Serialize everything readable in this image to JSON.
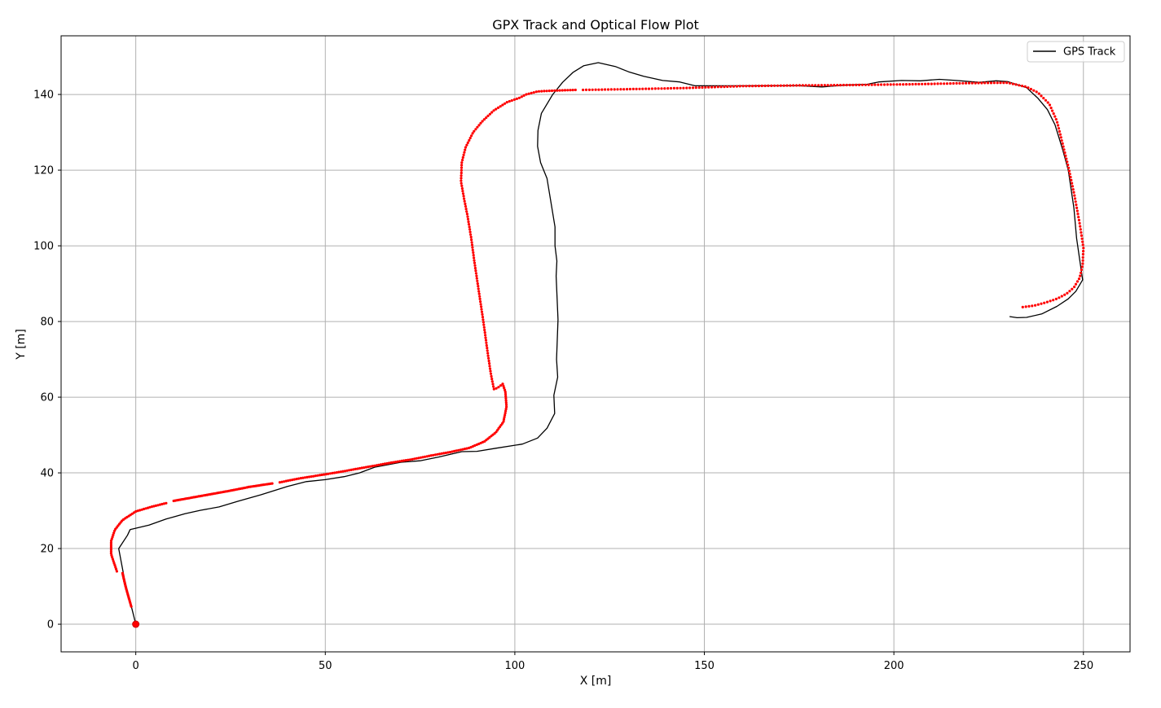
{
  "chart_data": {
    "type": "line",
    "title": "GPX Track and Optical Flow Plot",
    "xlabel": "X [m]",
    "ylabel": "Y [m]",
    "xlim": [
      -19.7,
      262.3
    ],
    "ylim": [
      -7.3,
      155.5
    ],
    "xticks": [
      0,
      50,
      100,
      150,
      200,
      250
    ],
    "yticks": [
      0,
      20,
      40,
      60,
      80,
      100,
      120,
      140
    ],
    "grid": true,
    "legend": {
      "position": "top-right",
      "entries": [
        "GPS Track"
      ]
    },
    "series": [
      {
        "name": "GPS Track",
        "kind": "line",
        "color": "#000000",
        "points": [
          [
            0,
            0
          ],
          [
            -3,
            12
          ],
          [
            -4.5,
            20
          ],
          [
            -2.2,
            23.5
          ],
          [
            -1.5,
            25
          ],
          [
            3.5,
            26.2
          ],
          [
            8,
            27.8
          ],
          [
            13,
            29.2
          ],
          [
            17,
            30.1
          ],
          [
            22,
            31
          ],
          [
            27,
            32.5
          ],
          [
            33,
            34.2
          ],
          [
            40,
            36.4
          ],
          [
            45,
            37.7
          ],
          [
            50,
            38.2
          ],
          [
            55,
            39
          ],
          [
            59,
            40
          ],
          [
            63,
            41.5
          ],
          [
            70,
            42.8
          ],
          [
            75,
            43.2
          ],
          [
            80,
            44.2
          ],
          [
            86,
            45.6
          ],
          [
            90,
            45.7
          ],
          [
            95,
            46.5
          ],
          [
            102,
            47.6
          ],
          [
            106,
            49.2
          ],
          [
            108.5,
            51.8
          ],
          [
            110.5,
            55.7
          ],
          [
            110.3,
            60.5
          ],
          [
            111.3,
            65.3
          ],
          [
            111,
            70
          ],
          [
            111.4,
            80.5
          ],
          [
            110.9,
            92
          ],
          [
            111.1,
            96
          ],
          [
            110.6,
            100
          ],
          [
            110.6,
            105
          ],
          [
            109.2,
            113.5
          ],
          [
            108.5,
            117.8
          ],
          [
            106.8,
            122
          ],
          [
            106,
            126.3
          ],
          [
            106.1,
            130.5
          ],
          [
            107,
            135
          ],
          [
            110,
            140
          ],
          [
            112.6,
            143.2
          ],
          [
            115.3,
            145.8
          ],
          [
            118.2,
            147.6
          ],
          [
            122,
            148.4
          ],
          [
            126.5,
            147.4
          ],
          [
            130,
            146
          ],
          [
            134,
            144.8
          ],
          [
            139,
            143.7
          ],
          [
            143.5,
            143.3
          ],
          [
            147.5,
            142.3
          ],
          [
            160,
            142.3
          ],
          [
            175,
            142.3
          ],
          [
            181,
            142
          ],
          [
            188,
            142.5
          ],
          [
            193,
            142.7
          ],
          [
            196,
            143.3
          ],
          [
            202,
            143.7
          ],
          [
            207,
            143.6
          ],
          [
            212,
            144
          ],
          [
            216.5,
            143.7
          ],
          [
            222.5,
            143.2
          ],
          [
            227,
            143.6
          ],
          [
            230,
            143.4
          ],
          [
            235,
            141.8
          ],
          [
            238,
            139
          ],
          [
            240.5,
            136
          ],
          [
            242.5,
            132
          ],
          [
            244.5,
            125.5
          ],
          [
            246,
            120
          ],
          [
            247.5,
            110
          ],
          [
            248.2,
            102
          ],
          [
            249.8,
            91
          ],
          [
            248,
            88
          ],
          [
            246,
            86
          ],
          [
            243,
            84
          ],
          [
            239,
            82
          ],
          [
            235,
            81.1
          ],
          [
            232.5,
            81
          ],
          [
            230.5,
            81.3
          ]
        ]
      },
      {
        "name": "",
        "kind": "scatter",
        "color": "#ff0000",
        "segments": [
          {
            "points": [
              [
                -1.2,
                4.7
              ],
              [
                -2.7,
                10
              ],
              [
                -3.5,
                13.5
              ]
            ],
            "n": 22
          },
          {
            "points": [
              [
                -5,
                14
              ],
              [
                -6.5,
                18.5
              ],
              [
                -6.5,
                22
              ],
              [
                -5.5,
                25
              ],
              [
                -3.5,
                27.5
              ],
              [
                0,
                29.8
              ],
              [
                4,
                31
              ],
              [
                8,
                32
              ]
            ],
            "n": 50
          },
          {
            "points": [
              [
                10,
                32.6
              ],
              [
                15,
                33.5
              ],
              [
                20,
                34.4
              ],
              [
                25,
                35.3
              ],
              [
                30,
                36.3
              ],
              [
                36,
                37.2
              ]
            ],
            "n": 60
          },
          {
            "points": [
              [
                38,
                37.5
              ],
              [
                43,
                38.5
              ],
              [
                48,
                39.3
              ],
              [
                53,
                40.1
              ],
              [
                58,
                41
              ],
              [
                63,
                41.9
              ],
              [
                68,
                42.8
              ],
              [
                73,
                43.6
              ],
              [
                78,
                44.6
              ],
              [
                83,
                45.5
              ],
              [
                88,
                46.6
              ],
              [
                92,
                48.3
              ],
              [
                95,
                50.7
              ],
              [
                97,
                53.5
              ],
              [
                97.8,
                57.5
              ],
              [
                97.5,
                61.5
              ],
              [
                96.8,
                63.5
              ]
            ],
            "n": 130
          },
          {
            "points": [
              [
                96.8,
                63.5
              ],
              [
                95.5,
                62.5
              ],
              [
                94.5,
                62.1
              ],
              [
                93.7,
                66
              ],
              [
                92.8,
                72
              ],
              [
                91.7,
                80
              ],
              [
                90.5,
                88
              ],
              [
                89.3,
                96
              ],
              [
                88.5,
                102
              ],
              [
                87.5,
                108
              ],
              [
                86.7,
                112
              ],
              [
                85.8,
                117
              ],
              [
                86,
                122
              ],
              [
                87,
                126
              ],
              [
                89,
                130
              ],
              [
                91.5,
                133
              ],
              [
                94.5,
                135.8
              ],
              [
                98,
                138
              ],
              [
                101,
                139
              ],
              [
                103,
                140
              ],
              [
                106,
                140.8
              ],
              [
                110,
                141
              ],
              [
                116,
                141.2
              ]
            ],
            "n": 150
          },
          {
            "points": [
              [
                118,
                141.2
              ],
              [
                130,
                141.4
              ],
              [
                145,
                141.7
              ],
              [
                160,
                142.2
              ],
              [
                175,
                142.4
              ],
              [
                190,
                142.5
              ],
              [
                205,
                142.7
              ],
              [
                220,
                143
              ],
              [
                230,
                143.1
              ],
              [
                235,
                142
              ],
              [
                238,
                140.5
              ],
              [
                241,
                137.5
              ],
              [
                243,
                133
              ],
              [
                244.5,
                127
              ],
              [
                246,
                121
              ],
              [
                247.5,
                114
              ],
              [
                249,
                106
              ],
              [
                250,
                99.5
              ],
              [
                249.8,
                95
              ],
              [
                249,
                91.5
              ],
              [
                247.5,
                89
              ],
              [
                245.5,
                87.3
              ],
              [
                243,
                86
              ],
              [
                240,
                85
              ],
              [
                237,
                84.2
              ],
              [
                234,
                83.8
              ]
            ],
            "n": 230
          }
        ]
      },
      {
        "name": "",
        "kind": "marker",
        "color": "#ff0000",
        "points": [
          [
            0,
            0
          ]
        ]
      }
    ]
  }
}
